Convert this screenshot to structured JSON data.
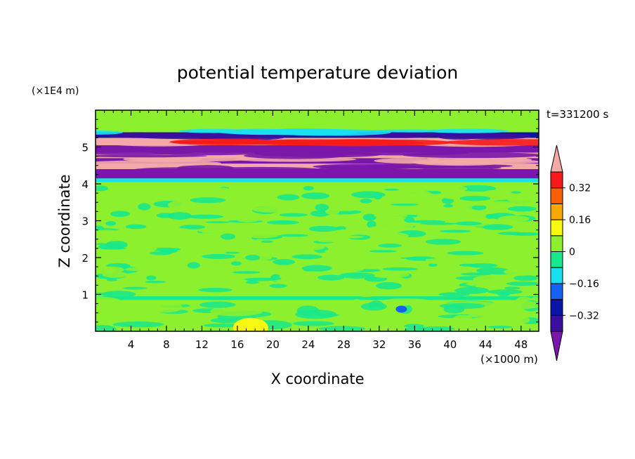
{
  "chart_data": {
    "type": "heatmap",
    "title": "potential temperature deviation",
    "xlabel": "X coordinate",
    "ylabel": "Z coordinate",
    "x_unit": "(×1000 m)",
    "y_unit": "(×1E4 m)",
    "time_label": "t=331200 s",
    "xlim": [
      0,
      50
    ],
    "ylim": [
      0,
      6
    ],
    "xticks": [
      4,
      8,
      12,
      16,
      20,
      24,
      28,
      32,
      36,
      40,
      44,
      48
    ],
    "yticks": [
      1,
      2,
      3,
      4,
      5
    ],
    "colorbar": {
      "levels": [
        -0.4,
        -0.32,
        -0.24,
        -0.16,
        -0.08,
        0,
        0.08,
        0.16,
        0.24,
        0.32,
        0.4
      ],
      "tick_labels": [
        "0.32",
        "0.16",
        "0",
        "−0.16",
        "−0.32"
      ],
      "tick_values": [
        0.32,
        0.16,
        0,
        -0.16,
        -0.32
      ],
      "colors": [
        "#7a16a8",
        "#3a0fa0",
        "#0a14a8",
        "#1460f0",
        "#18e0f0",
        "#18e88c",
        "#8cf02e",
        "#f8f810",
        "#f8a800",
        "#f86000",
        "#f81a1a",
        "#f4a8a8"
      ]
    },
    "bands": [
      {
        "z": [
          0.0,
          0.85
        ],
        "value": 0.04
      },
      {
        "z": [
          0.85,
          0.95
        ],
        "value": -0.08
      },
      {
        "z": [
          0.95,
          4.05
        ],
        "value": 0.06
      },
      {
        "z": [
          4.05,
          4.15
        ],
        "value": -0.1
      },
      {
        "z": [
          4.15,
          4.4
        ],
        "value": -0.42
      },
      {
        "z": [
          4.4,
          4.55
        ],
        "value": 0.45
      },
      {
        "z": [
          4.55,
          4.7
        ],
        "value": -0.42
      },
      {
        "z": [
          4.7,
          4.85
        ],
        "value": 0.45
      },
      {
        "z": [
          4.85,
          5.05
        ],
        "value": -0.42
      },
      {
        "z": [
          5.05,
          5.25
        ],
        "value": 0.45
      },
      {
        "z": [
          5.25,
          5.4
        ],
        "value": -0.3
      },
      {
        "z": [
          5.4,
          6.0
        ],
        "value": 0.04
      }
    ]
  }
}
